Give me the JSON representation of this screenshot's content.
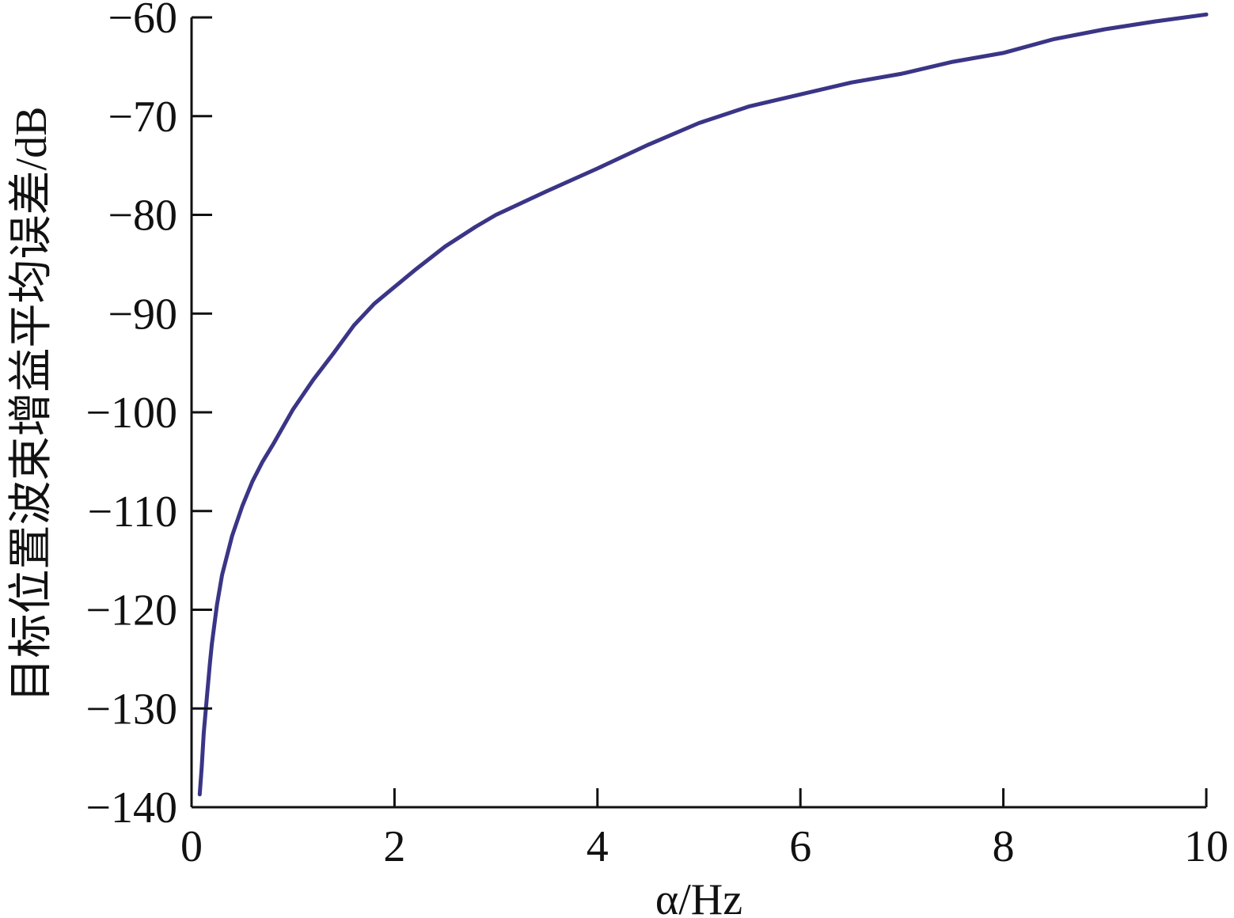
{
  "chart_data": {
    "type": "line",
    "title": "",
    "xlabel": "α/Hz",
    "ylabel": "目标位置波束增益平均误差/dB",
    "xlim": [
      0,
      10
    ],
    "ylim": [
      -140,
      -60
    ],
    "xticks": [
      0,
      2,
      4,
      6,
      8,
      10
    ],
    "yticks": [
      -140,
      -130,
      -120,
      -110,
      -100,
      -90,
      -80,
      -70,
      -60
    ],
    "xtick_labels": [
      "0",
      "2",
      "4",
      "6",
      "8",
      "10"
    ],
    "ytick_labels": [
      "−140",
      "−130",
      "−120",
      "−110",
      "−100",
      "−90",
      "−80",
      "−70",
      "−60"
    ],
    "grid": false,
    "legend": "none",
    "line_color": "#3a3586",
    "series": [
      {
        "x": [
          0.08,
          0.1,
          0.12,
          0.15,
          0.18,
          0.2,
          0.25,
          0.3,
          0.4,
          0.5,
          0.6,
          0.7,
          0.8,
          1.0,
          1.2,
          1.4,
          1.5,
          1.6,
          1.8,
          2.0,
          2.2,
          2.5,
          2.8,
          3.0,
          3.5,
          4.0,
          4.5,
          5.0,
          5.5,
          6.0,
          6.5,
          7.0,
          7.5,
          8.0,
          8.5,
          9.0,
          9.5,
          10.0
        ],
        "values": [
          -138.7,
          -136.0,
          -132.5,
          -129.0,
          -125.5,
          -123.5,
          -119.5,
          -116.5,
          -112.5,
          -109.5,
          -107.0,
          -105.0,
          -103.3,
          -99.7,
          -96.7,
          -94.0,
          -92.6,
          -91.2,
          -89.0,
          -87.3,
          -85.6,
          -83.2,
          -81.2,
          -80.0,
          -77.6,
          -75.3,
          -72.9,
          -70.7,
          -69.0,
          -67.8,
          -66.6,
          -65.7,
          -64.5,
          -63.6,
          -62.2,
          -61.2,
          -60.4,
          -59.7
        ]
      }
    ]
  }
}
